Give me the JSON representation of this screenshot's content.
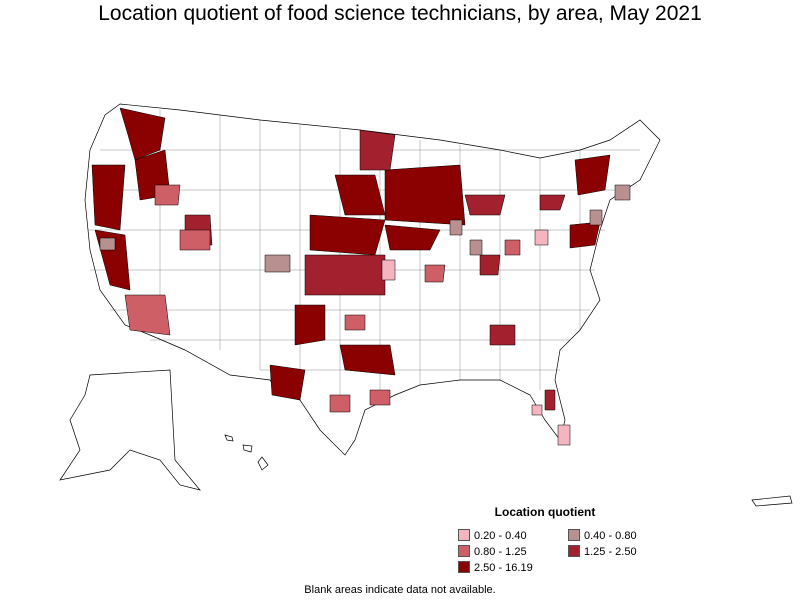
{
  "title": "Location quotient of food science technicians, by area, May 2021",
  "legend": {
    "title": "Location quotient",
    "items": [
      {
        "label": "0.20 - 0.40",
        "color": "#f5b5c0"
      },
      {
        "label": "0.40 - 0.80",
        "color": "#b89090"
      },
      {
        "label": "0.80 - 1.25",
        "color": "#cf5f66"
      },
      {
        "label": "1.25 - 2.50",
        "color": "#a3202e"
      },
      {
        "label": "2.50 - 16.19",
        "color": "#8b0000"
      }
    ]
  },
  "footnote": "Blank areas indicate data not available.",
  "map": {
    "background": "#ffffff",
    "border_color": "#000000"
  }
}
